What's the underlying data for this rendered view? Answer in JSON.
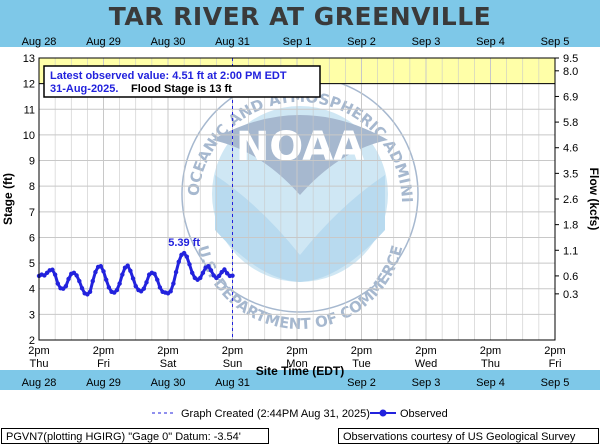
{
  "chart_data": {
    "type": "line",
    "title": "TAR RIVER AT GREENVILLE",
    "xlabel": "Site Time (EDT)",
    "ylabel": "Stage (ft)",
    "y2label": "Flow (kcfs)",
    "ylim": [
      2,
      13
    ],
    "yticks": [
      2,
      3,
      4,
      5,
      6,
      7,
      8,
      9,
      10,
      11,
      12,
      13
    ],
    "y2ticks": [
      {
        "stage": 3.8,
        "label": "0.3"
      },
      {
        "stage": 4.5,
        "label": "0.6"
      },
      {
        "stage": 5.5,
        "label": "1.1"
      },
      {
        "stage": 6.5,
        "label": "1.8"
      },
      {
        "stage": 7.5,
        "label": "2.6"
      },
      {
        "stage": 8.5,
        "label": "3.5"
      },
      {
        "stage": 9.5,
        "label": "4.6"
      },
      {
        "stage": 10.5,
        "label": "5.8"
      },
      {
        "stage": 11.5,
        "label": "6.9"
      },
      {
        "stage": 12.5,
        "label": "8.0"
      },
      {
        "stage": 13,
        "label": "9.5"
      }
    ],
    "xlim_hours": [
      0,
      192
    ],
    "top_date_labels": [
      {
        "hour": 0,
        "label": "Aug 28"
      },
      {
        "hour": 24,
        "label": "Aug 29"
      },
      {
        "hour": 48,
        "label": "Aug 30"
      },
      {
        "hour": 72,
        "label": "Aug 31"
      },
      {
        "hour": 96,
        "label": "Sep  1"
      },
      {
        "hour": 120,
        "label": "Sep  2"
      },
      {
        "hour": 144,
        "label": "Sep  3"
      },
      {
        "hour": 168,
        "label": "Sep  4"
      },
      {
        "hour": 192,
        "label": "Sep  5"
      }
    ],
    "bottom_time_labels": [
      {
        "hour": 0,
        "time": "2pm",
        "day": "Thu"
      },
      {
        "hour": 24,
        "time": "2pm",
        "day": "Fri"
      },
      {
        "hour": 48,
        "time": "2pm",
        "day": "Sat"
      },
      {
        "hour": 72,
        "time": "2pm",
        "day": "Sun"
      },
      {
        "hour": 96,
        "time": "2pm",
        "day": "Mon"
      },
      {
        "hour": 120,
        "time": "2pm",
        "day": "Tue"
      },
      {
        "hour": 144,
        "time": "2pm",
        "day": "Wed"
      },
      {
        "hour": 168,
        "time": "2pm",
        "day": "Thu"
      },
      {
        "hour": 192,
        "time": "2pm",
        "day": "Fri"
      }
    ],
    "bottom_date_labels": [
      "Aug 28",
      "Aug 29",
      "Aug 30",
      "Aug 31",
      "Sep  2",
      "Sep  3",
      "Sep  4",
      "Sep  5"
    ],
    "bottom_date_hours": [
      0,
      24,
      48,
      72,
      120,
      144,
      168,
      192
    ],
    "flood_band": [
      12,
      13
    ],
    "flood_color": "#ffffa8",
    "series": [
      {
        "name": "Observed",
        "color": "#2222dd",
        "x_hours": [
          0,
          1,
          2,
          3,
          4,
          5,
          6,
          7,
          8,
          9,
          10,
          11,
          12,
          13,
          14,
          15,
          16,
          17,
          18,
          19,
          20,
          21,
          22,
          23,
          24,
          25,
          26,
          27,
          28,
          29,
          30,
          31,
          32,
          33,
          34,
          35,
          36,
          37,
          38,
          39,
          40,
          41,
          42,
          43,
          44,
          45,
          46,
          47,
          48,
          49,
          50,
          51,
          52,
          53,
          54,
          55,
          56,
          57,
          58,
          59,
          60,
          61,
          62,
          63,
          64,
          65,
          66,
          67,
          68,
          69,
          70,
          71,
          72
        ],
        "y": [
          4.5,
          4.55,
          4.52,
          4.62,
          4.72,
          4.74,
          4.55,
          4.2,
          4.02,
          4.0,
          4.1,
          4.38,
          4.58,
          4.62,
          4.52,
          4.3,
          4.02,
          3.82,
          3.78,
          3.88,
          4.3,
          4.65,
          4.85,
          4.88,
          4.68,
          4.35,
          4.05,
          3.88,
          3.85,
          3.95,
          4.2,
          4.55,
          4.82,
          4.9,
          4.7,
          4.4,
          4.1,
          3.95,
          3.9,
          4.0,
          4.25,
          4.55,
          4.62,
          4.58,
          4.35,
          4.05,
          3.88,
          3.85,
          3.82,
          3.9,
          4.2,
          4.65,
          5.05,
          5.32,
          5.39,
          5.25,
          4.95,
          4.62,
          4.42,
          4.35,
          4.42,
          4.62,
          4.82,
          4.88,
          4.72,
          4.52,
          4.42,
          4.5,
          4.65,
          4.75,
          4.6,
          4.5,
          4.51
        ]
      }
    ],
    "peak_label": "5.39 ft",
    "peak_hour": 54,
    "peak_value": 5.39,
    "created_line_hour": 72,
    "annotation": {
      "line1": "Latest observed value: 4.51 ft at 2:00 PM EDT",
      "line2a": "31-Aug-2025.",
      "line2b": "Flood Stage is 13 ft"
    },
    "legend": {
      "created": "Graph Created (2:44PM Aug 31, 2025)",
      "observed": "Observed"
    }
  },
  "footer": {
    "left": "PGVN7(plotting HGIRG) \"Gage 0\" Datum: -3.54'",
    "right": "Observations courtesy of US Geological Survey"
  },
  "watermark": {
    "top_text": "NATIONAL OCEANIC AND ATMOSPHERIC ADMINISTRATION",
    "bottom_text": "U.S. DEPARTMENT OF COMMERCE",
    "center_text": "NOAA"
  },
  "colors": {
    "header_band": "#7ec8e8",
    "grid": "#c8c8c8",
    "series": "#2222dd",
    "watermark": "#5e7fa8"
  }
}
